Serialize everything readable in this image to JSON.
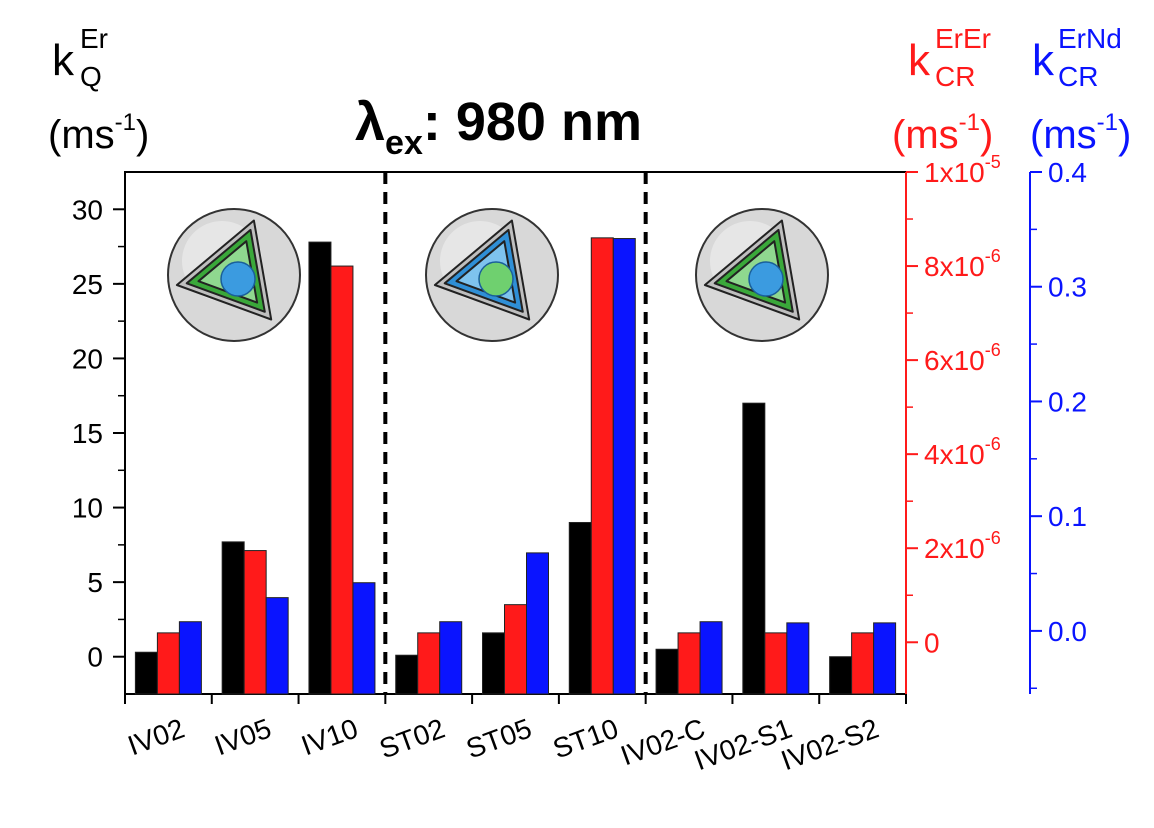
{
  "chart_data": {
    "type": "bar",
    "title_main": "λ",
    "title_sub": "ex",
    "title_rest": ": 980 nm",
    "categories": [
      "IV02",
      "IV05",
      "IV10",
      "ST02",
      "ST05",
      "ST10",
      "IV02-C",
      "IV02-S1",
      "IV02-S2"
    ],
    "series": [
      {
        "axis": "left",
        "color": "#000000",
        "values": [
          0.3,
          7.7,
          27.8,
          0.1,
          1.6,
          9.0,
          0.5,
          17.0,
          0.0
        ]
      },
      {
        "axis": "red",
        "color": "#ff1a1a",
        "values": [
          2e-07,
          1.95e-06,
          8e-06,
          2e-07,
          8e-07,
          8.6e-06,
          2e-07,
          2e-07,
          2e-07
        ]
      },
      {
        "axis": "blue",
        "color": "#0a14ff",
        "values": [
          0.008,
          0.029,
          0.042,
          0.008,
          0.068,
          0.342,
          0.008,
          0.007,
          0.007
        ]
      }
    ],
    "axes": {
      "left": {
        "label_main": "k",
        "label_sup": "Er",
        "label_sub": "Q",
        "unit": "(ms",
        "unit_sup": "-1",
        "unit_close": ")",
        "min": -2.5,
        "max": 32.5,
        "ticks": [
          0,
          5,
          10,
          15,
          20,
          25,
          30
        ],
        "tick_labels": [
          "0",
          "5",
          "10",
          "15",
          "20",
          "25",
          "30"
        ],
        "color": "#000000"
      },
      "red": {
        "label_main": "k",
        "label_sup": "ErEr",
        "label_sub": "CR",
        "unit": "(ms",
        "unit_sup": "-1",
        "unit_close": ")",
        "min": -1.1e-06,
        "max": 1e-05,
        "ticks": [
          0,
          2e-06,
          4e-06,
          6e-06,
          8e-06,
          1e-05
        ],
        "tick_labels": [
          {
            "base": "0",
            "exp": ""
          },
          {
            "base": "2x10",
            "exp": "-6"
          },
          {
            "base": "4x10",
            "exp": "-6"
          },
          {
            "base": "6x10",
            "exp": "-6"
          },
          {
            "base": "8x10",
            "exp": "-6"
          },
          {
            "base": "1x10",
            "exp": "-5"
          }
        ],
        "color": "#ff1a1a"
      },
      "blue": {
        "label_main": "k",
        "label_sup": "ErNd",
        "label_sub": "CR",
        "unit": "(ms",
        "unit_sup": "-1",
        "unit_close": ")",
        "min": -0.055,
        "max": 0.4,
        "ticks": [
          0.0,
          0.1,
          0.2,
          0.3,
          0.4
        ],
        "tick_labels": [
          "0.0",
          "0.1",
          "0.2",
          "0.3",
          "0.4"
        ],
        "color": "#0a14ff"
      }
    },
    "group_separators_after_category": [
      2,
      5
    ],
    "insets": [
      {
        "group": "IV",
        "outer": "#3aa83a",
        "mid": "#8fd88f",
        "core": "#3b9be0"
      },
      {
        "group": "ST",
        "outer": "#2f8fd6",
        "mid": "#7ec3ee",
        "core": "#6fd06f"
      },
      {
        "group": "IV-S",
        "outer": "#3aa83a",
        "mid": "#8fd88f",
        "core": "#3b9be0"
      }
    ]
  }
}
